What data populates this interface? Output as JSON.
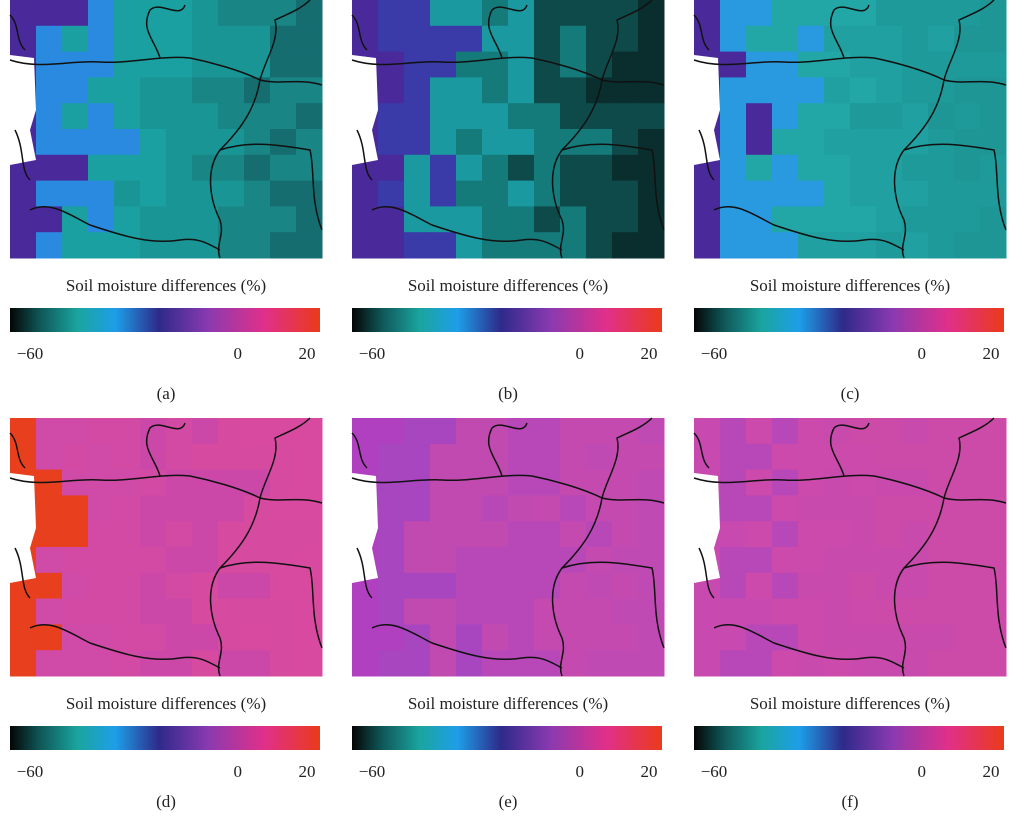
{
  "panels": [
    {
      "title": "Soil moisture differences (%)",
      "label": "(a)",
      "colorbar": {
        "range": [
          -60,
          20
        ],
        "ticks": [
          {
            "value": -60,
            "label": "−60"
          },
          0,
          20
        ]
      }
    },
    {
      "title": "Soil moisture differences (%)",
      "label": "(b)",
      "colorbar": {
        "range": [
          -60,
          20
        ],
        "ticks": [
          {
            "value": -60,
            "label": "−60"
          },
          0,
          20
        ]
      }
    },
    {
      "title": "Soil moisture differences (%)",
      "label": "(c)",
      "colorbar": {
        "range": [
          -60,
          20
        ],
        "ticks": [
          {
            "value": -60,
            "label": "−60"
          },
          0,
          20
        ]
      }
    },
    {
      "title": "Soil moisture differences (%)",
      "label": "(d)",
      "colorbar": {
        "range": [
          -60,
          20
        ],
        "ticks": [
          {
            "value": -60,
            "label": "−60"
          },
          0,
          20
        ]
      }
    },
    {
      "title": "Soil moisture differences (%)",
      "label": "(e)",
      "colorbar": {
        "range": [
          -60,
          20
        ],
        "ticks": [
          {
            "value": -60,
            "label": "−60"
          },
          0,
          20
        ]
      }
    },
    {
      "title": "Soil moisture differences (%)",
      "label": "(f)",
      "colorbar": {
        "range": [
          -60,
          20
        ],
        "ticks": [
          {
            "value": -60,
            "label": "−60"
          },
          0,
          20
        ]
      }
    }
  ]
}
